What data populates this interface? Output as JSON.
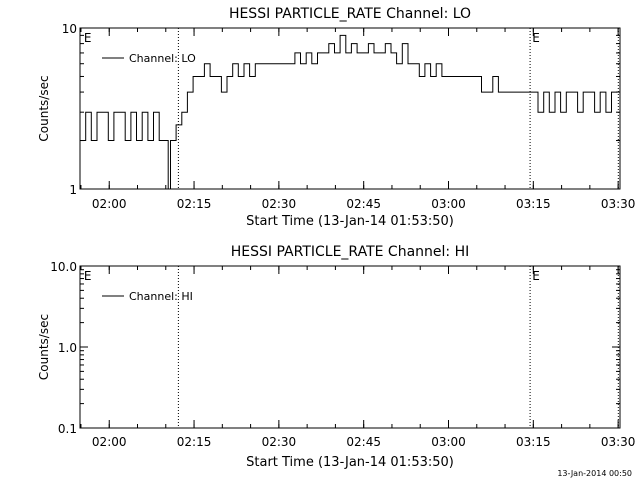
{
  "footer_timestamp": "13-Jan-2014 00:50",
  "chart_data": [
    {
      "type": "line",
      "title": "HESSI PARTICLE_RATE Channel: LO",
      "xlabel": "Start Time (13-Jan-14 01:53:50)",
      "ylabel": "Counts/sec",
      "y_scale": "log",
      "ylim": [
        1,
        10
      ],
      "y_ticks": [
        {
          "value": 1,
          "label": "1"
        },
        {
          "value": 10,
          "label": "10"
        }
      ],
      "x_range_minutes": [
        1.0,
        96.5
      ],
      "x_ticks": [
        {
          "minute": 6.17,
          "label": "02:00"
        },
        {
          "minute": 21.17,
          "label": "02:15"
        },
        {
          "minute": 36.17,
          "label": "02:30"
        },
        {
          "minute": 51.17,
          "label": "02:45"
        },
        {
          "minute": 66.17,
          "label": "03:00"
        },
        {
          "minute": 81.17,
          "label": "03:15"
        },
        {
          "minute": 96.17,
          "label": "03:30"
        }
      ],
      "legend_position": "top-left",
      "series": [
        {
          "name": "Channel: LO",
          "x": [
            1.0,
            2.0,
            3.0,
            4.0,
            5.0,
            6.0,
            7.0,
            8.0,
            9.0,
            10.0,
            11.0,
            12.0,
            13.0,
            14.0,
            15.0,
            16.0,
            16.6,
            17.0,
            17.5,
            18.0,
            19.0,
            20.0,
            21.0,
            22.0,
            23.0,
            24.0,
            25.0,
            26.0,
            27.0,
            28.0,
            29.0,
            30.0,
            31.0,
            32.0,
            33.0,
            34.0,
            35.0,
            36.0,
            37.0,
            38.0,
            39.0,
            40.0,
            41.0,
            42.0,
            43.0,
            44.0,
            45.0,
            46.0,
            47.0,
            48.0,
            49.0,
            50.0,
            51.0,
            52.0,
            53.0,
            54.0,
            55.0,
            56.0,
            57.0,
            58.0,
            59.0,
            60.0,
            61.0,
            62.0,
            63.0,
            64.0,
            65.0,
            66.0,
            67.0,
            68.0,
            69.0,
            70.0,
            71.0,
            72.0,
            73.0,
            74.0,
            75.0,
            76.0,
            77.0,
            78.0,
            79.0,
            80.0,
            81.0,
            82.0,
            83.0,
            84.0,
            85.0,
            86.0,
            87.0,
            88.0,
            89.0,
            90.0,
            91.0,
            92.0,
            93.0,
            94.0,
            95.0,
            96.0
          ],
          "y": [
            2,
            3,
            2,
            3,
            3,
            2,
            3,
            3,
            2,
            3,
            2,
            3,
            2,
            3,
            2,
            2,
            1,
            2,
            2,
            2.5,
            3,
            4,
            5,
            5,
            6,
            5,
            5,
            4,
            5,
            6,
            5,
            6,
            5,
            6,
            6,
            6,
            6,
            6,
            6,
            6,
            7,
            6,
            7,
            6,
            7,
            7,
            8,
            7,
            9,
            7,
            8,
            7,
            7,
            8,
            7,
            7,
            8,
            7,
            6,
            8,
            6,
            6,
            5,
            6,
            5,
            6,
            5,
            5,
            5,
            5,
            5,
            5,
            5,
            4,
            4,
            5,
            4,
            4,
            4,
            4,
            4,
            4,
            4,
            3,
            4,
            3,
            4,
            3,
            4,
            4,
            3,
            4,
            4,
            3,
            4,
            3,
            4,
            4
          ]
        }
      ],
      "annotations": [
        {
          "text": "E",
          "minute": 1.5
        },
        {
          "text": "E",
          "minute": 80.8
        }
      ],
      "vertical_dotted_lines_minutes": [
        18.4,
        80.6,
        96.2
      ]
    },
    {
      "type": "line",
      "title": "HESSI PARTICLE_RATE Channel: HI",
      "xlabel": "Start Time (13-Jan-14 01:53:50)",
      "ylabel": "Counts/sec",
      "y_scale": "log",
      "ylim": [
        0.1,
        10
      ],
      "y_ticks": [
        {
          "value": 0.1,
          "label": "0.1"
        },
        {
          "value": 1,
          "label": "1.0"
        },
        {
          "value": 10,
          "label": "10.0"
        }
      ],
      "x_range_minutes": [
        1.0,
        96.5
      ],
      "x_ticks": [
        {
          "minute": 6.17,
          "label": "02:00"
        },
        {
          "minute": 21.17,
          "label": "02:15"
        },
        {
          "minute": 36.17,
          "label": "02:30"
        },
        {
          "minute": 51.17,
          "label": "02:45"
        },
        {
          "minute": 66.17,
          "label": "03:00"
        },
        {
          "minute": 81.17,
          "label": "03:15"
        },
        {
          "minute": 96.17,
          "label": "03:30"
        }
      ],
      "legend_position": "top-left",
      "series": [
        {
          "name": "Channel: HI",
          "x": [],
          "y": []
        }
      ],
      "annotations": [
        {
          "text": "E",
          "minute": 1.5
        },
        {
          "text": "E",
          "minute": 80.8
        }
      ],
      "vertical_dotted_lines_minutes": [
        18.4,
        80.6,
        96.2
      ]
    }
  ]
}
